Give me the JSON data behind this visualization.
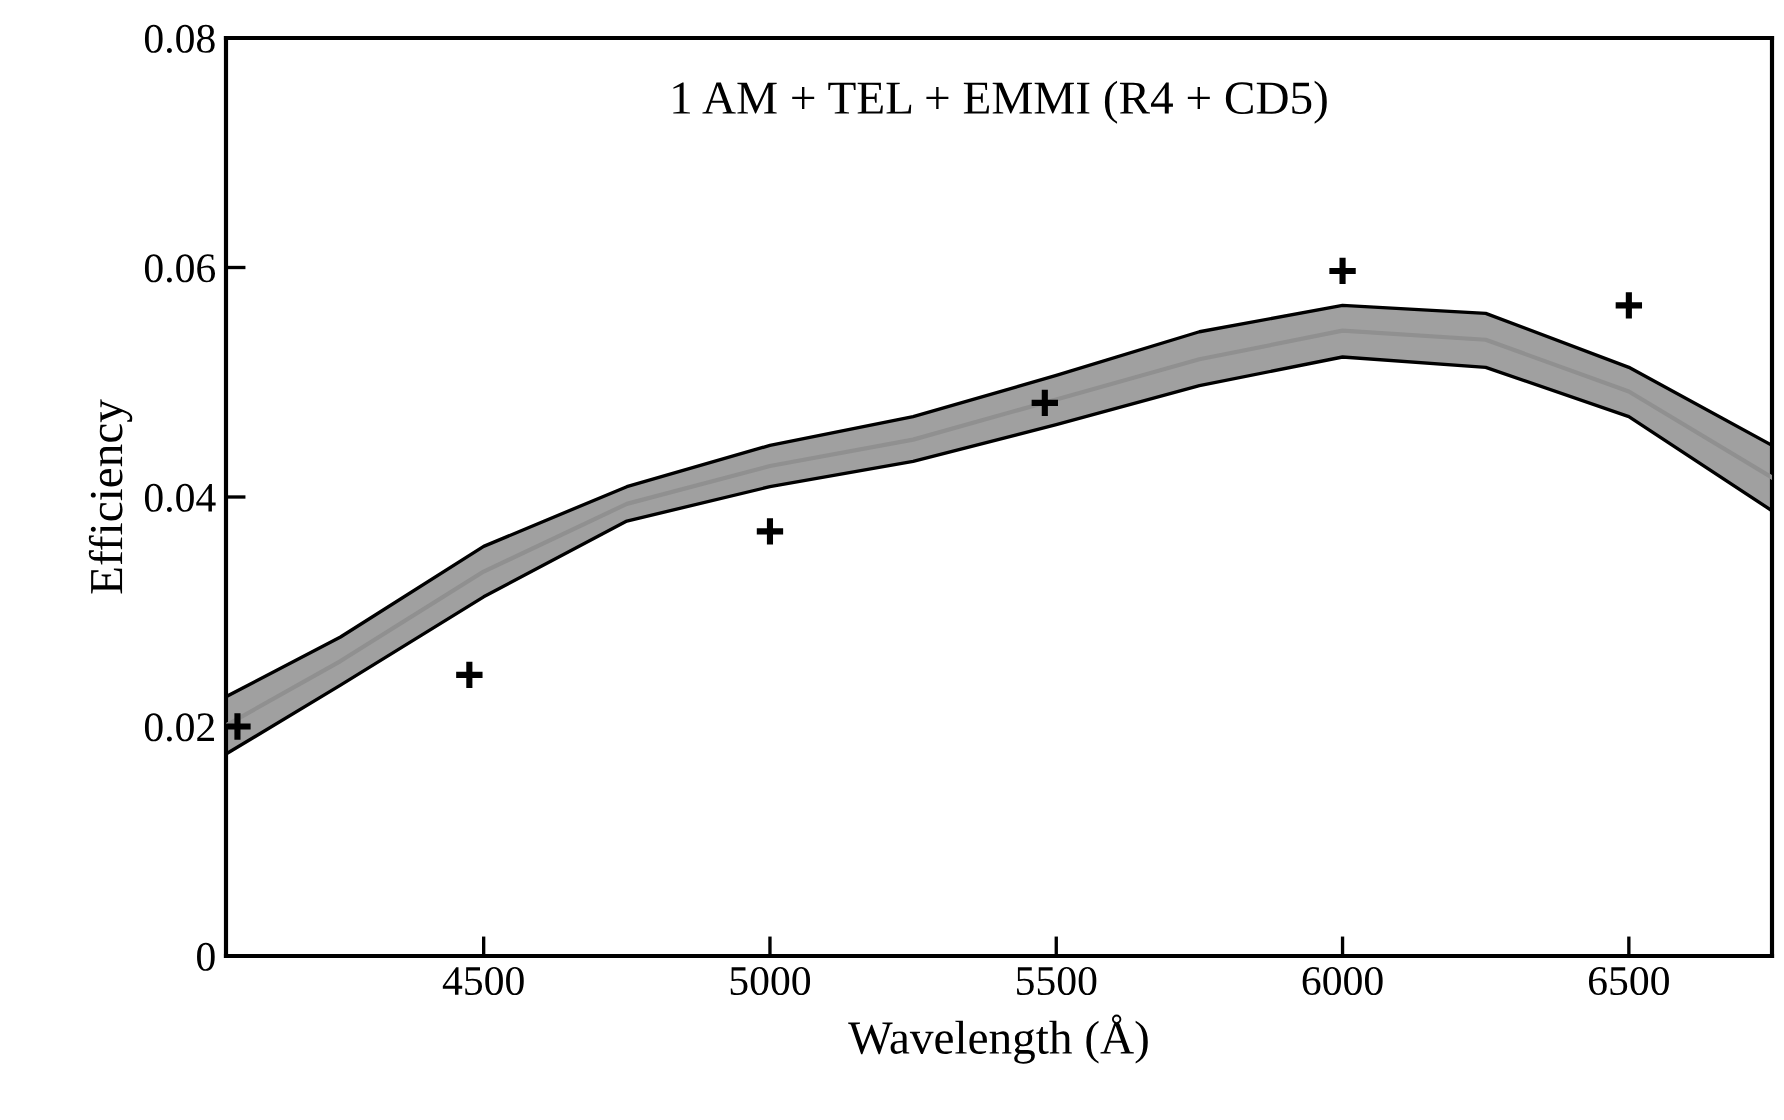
{
  "chart_data": {
    "type": "line",
    "title": "1 AM + TEL + EMMI (R4 + CD5)",
    "xlabel": "Wavelength (Å)",
    "ylabel": "Efficiency",
    "xlim": [
      4050,
      6750
    ],
    "xticks": [
      4500,
      5000,
      5500,
      6000,
      6500
    ],
    "ylim": [
      0,
      0.08
    ],
    "yticks": [
      0,
      0.02,
      0.04,
      0.06,
      0.08
    ],
    "grid": false,
    "legend": false,
    "series": [
      {
        "color": "#a0a0a0",
        "x": [
          4050,
          4250,
          4500,
          4750,
          5000,
          5250,
          5500,
          5750,
          6000,
          6250,
          6500,
          6750
        ],
        "values": [
          0.0201,
          0.0257,
          0.0335,
          0.0394,
          0.0427,
          0.045,
          0.0485,
          0.052,
          0.0545,
          0.0537,
          0.0492,
          0.0417
        ],
        "lower": [
          0.0176,
          0.0236,
          0.0313,
          0.0379,
          0.0409,
          0.0431,
          0.0463,
          0.0497,
          0.0522,
          0.0513,
          0.047,
          0.0388
        ],
        "upper": [
          0.0226,
          0.0278,
          0.0357,
          0.0409,
          0.0445,
          0.047,
          0.0506,
          0.0544,
          0.0567,
          0.056,
          0.0513,
          0.0445
        ]
      },
      {
        "type": "scatter",
        "color": "#000000",
        "marker": "cross",
        "x": [
          4070,
          4475,
          5000,
          5480,
          6000,
          6500
        ],
        "values": [
          0.02,
          0.0245,
          0.037,
          0.0482,
          0.0597,
          0.0567
        ]
      }
    ]
  }
}
